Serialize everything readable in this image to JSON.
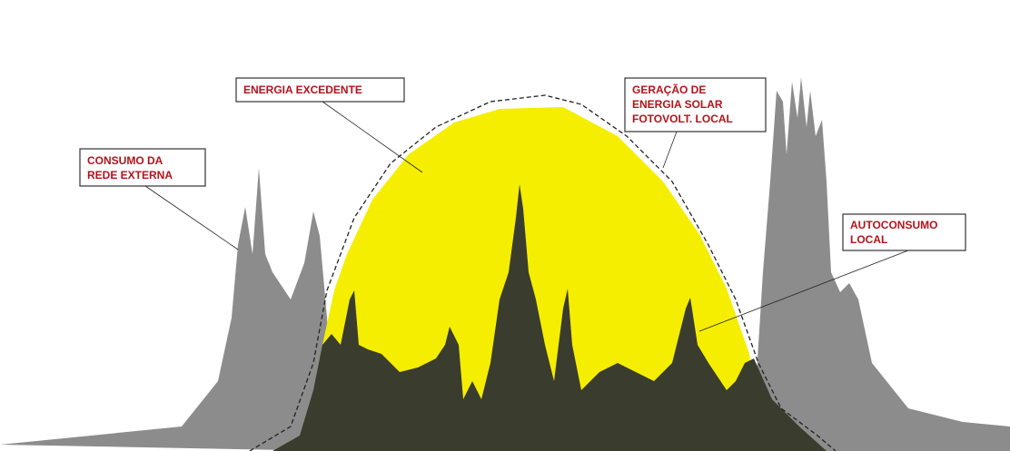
{
  "labels": [
    {
      "lines": [
        "ENERGIA EXCEDENTE"
      ]
    },
    {
      "lines": [
        "GERAÇÃO DE",
        "ENERGIA SOLAR",
        "FOTOVOLT. LOCAL"
      ]
    },
    {
      "lines": [
        "CONSUMO DA",
        "REDE EXTERNA"
      ]
    },
    {
      "lines": [
        "AUTOCONSUMO",
        "LOCAL"
      ]
    }
  ]
}
